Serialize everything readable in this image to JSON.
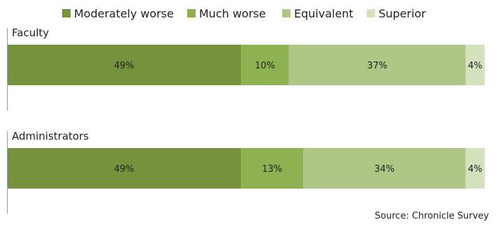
{
  "chart_data": {
    "type": "bar",
    "orientation": "horizontal",
    "stacked": true,
    "percent": true,
    "categories": [
      "Faculty",
      "Administrators"
    ],
    "series": [
      {
        "name": "Moderately worse",
        "values": [
          49,
          49
        ],
        "color": "#76923c"
      },
      {
        "name": "Much worse",
        "values": [
          10,
          13
        ],
        "color": "#8db050"
      },
      {
        "name": "Equivalent",
        "values": [
          37,
          34
        ],
        "color": "#aec785"
      },
      {
        "name": "Superior",
        "values": [
          4,
          4
        ],
        "color": "#d4e2bd"
      }
    ],
    "xlim": [
      0,
      100
    ],
    "grid": false,
    "legend_position": "top"
  },
  "source": "Source: Chronicle Survey"
}
